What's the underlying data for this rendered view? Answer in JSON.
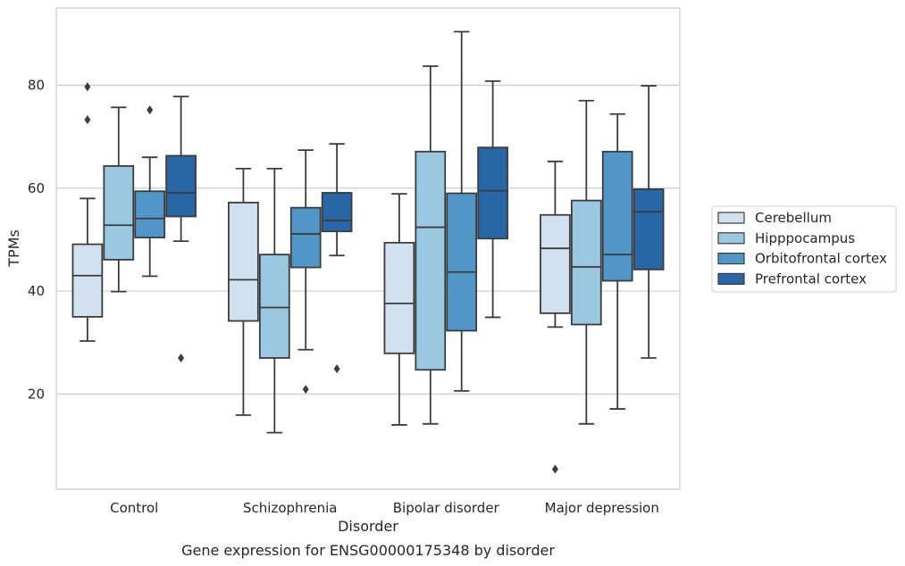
{
  "chart_data": {
    "type": "box",
    "caption": "Gene expression for ENSG00000175348 by disorder",
    "xlabel": "Disorder",
    "ylabel": "TPMs",
    "ylim": [
      1.5,
      95.0
    ],
    "yticks": [
      20,
      40,
      60,
      80
    ],
    "grid": "horizontal",
    "legend_position": "right",
    "categories": [
      "Control",
      "Schizophrenia",
      "Bipolar disorder",
      "Major depression"
    ],
    "series": [
      {
        "name": "Cerebellum",
        "color": "#d2e1f0",
        "boxes": [
          {
            "whisker_low": 30.3,
            "q1": 35.0,
            "median": 43.0,
            "q3": 49.1,
            "whisker_high": 58.0,
            "outliers": [
              73.3,
              79.7
            ]
          },
          {
            "whisker_low": 15.9,
            "q1": 34.2,
            "median": 42.2,
            "q3": 57.2,
            "whisker_high": 63.8,
            "outliers": []
          },
          {
            "whisker_low": 14.0,
            "q1": 27.9,
            "median": 37.6,
            "q3": 49.4,
            "whisker_high": 58.9,
            "outliers": []
          },
          {
            "whisker_low": 33.0,
            "q1": 35.7,
            "median": 48.3,
            "q3": 54.8,
            "whisker_high": 65.2,
            "outliers": [
              5.4
            ]
          }
        ]
      },
      {
        "name": "Hipppocampus",
        "color": "#9ac8e0",
        "boxes": [
          {
            "whisker_low": 39.9,
            "q1": 46.1,
            "median": 52.8,
            "q3": 64.3,
            "whisker_high": 75.7,
            "outliers": []
          },
          {
            "whisker_low": 12.5,
            "q1": 27.0,
            "median": 36.8,
            "q3": 47.1,
            "whisker_high": 63.8,
            "outliers": []
          },
          {
            "whisker_low": 14.2,
            "q1": 24.7,
            "median": 52.4,
            "q3": 67.1,
            "whisker_high": 83.7,
            "outliers": []
          },
          {
            "whisker_low": 14.2,
            "q1": 33.5,
            "median": 44.7,
            "q3": 57.6,
            "whisker_high": 77.0,
            "outliers": []
          }
        ]
      },
      {
        "name": "Orbitofrontal cortex",
        "color": "#5097c8",
        "boxes": [
          {
            "whisker_low": 42.9,
            "q1": 50.4,
            "median": 54.1,
            "q3": 59.4,
            "whisker_high": 66.0,
            "outliers": [
              75.2
            ]
          },
          {
            "whisker_low": 28.6,
            "q1": 44.6,
            "median": 51.1,
            "q3": 56.2,
            "whisker_high": 67.4,
            "outliers": [
              20.9
            ]
          },
          {
            "whisker_low": 20.6,
            "q1": 32.3,
            "median": 43.7,
            "q3": 59.0,
            "whisker_high": 90.4,
            "outliers": []
          },
          {
            "whisker_low": 17.1,
            "q1": 42.0,
            "median": 47.1,
            "q3": 67.1,
            "whisker_high": 74.4,
            "outliers": []
          }
        ]
      },
      {
        "name": "Prefrontal cortex",
        "color": "#2866a6",
        "boxes": [
          {
            "whisker_low": 49.7,
            "q1": 54.5,
            "median": 59.1,
            "q3": 66.3,
            "whisker_high": 77.8,
            "outliers": [
              27.0
            ]
          },
          {
            "whisker_low": 46.9,
            "q1": 51.6,
            "median": 53.7,
            "q3": 59.1,
            "whisker_high": 68.6,
            "outliers": [
              24.9
            ]
          },
          {
            "whisker_low": 34.9,
            "q1": 50.2,
            "median": 59.5,
            "q3": 67.9,
            "whisker_high": 80.8,
            "outliers": []
          },
          {
            "whisker_low": 27.0,
            "q1": 44.2,
            "median": 55.4,
            "q3": 59.8,
            "whisker_high": 79.9,
            "outliers": []
          }
        ]
      }
    ]
  }
}
